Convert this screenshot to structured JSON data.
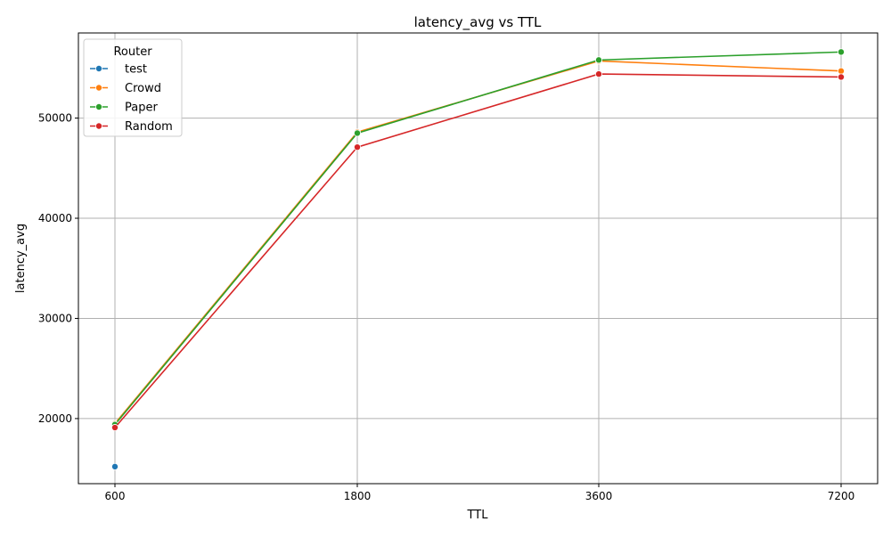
{
  "chart_data": {
    "type": "line",
    "title": "latency_avg vs TTL",
    "xlabel": "TTL",
    "ylabel": "latency_avg",
    "x_categories": [
      "600",
      "1800",
      "3600",
      "7200"
    ],
    "yticks": [
      20000,
      30000,
      40000,
      50000
    ],
    "ylim": [
      13500,
      58500
    ],
    "grid": true,
    "legend": {
      "title": "Router",
      "placement": "top-left"
    },
    "series": [
      {
        "name": "test",
        "color": "#1f77b4",
        "values": [
          15200,
          null,
          null,
          null
        ]
      },
      {
        "name": "Crowd",
        "color": "#ff7f0e",
        "values": [
          19500,
          48600,
          55700,
          54700
        ]
      },
      {
        "name": "Paper",
        "color": "#2ca02c",
        "values": [
          19400,
          48500,
          55800,
          56600
        ]
      },
      {
        "name": "Random",
        "color": "#d62728",
        "values": [
          19100,
          47100,
          54400,
          54100
        ]
      }
    ]
  }
}
